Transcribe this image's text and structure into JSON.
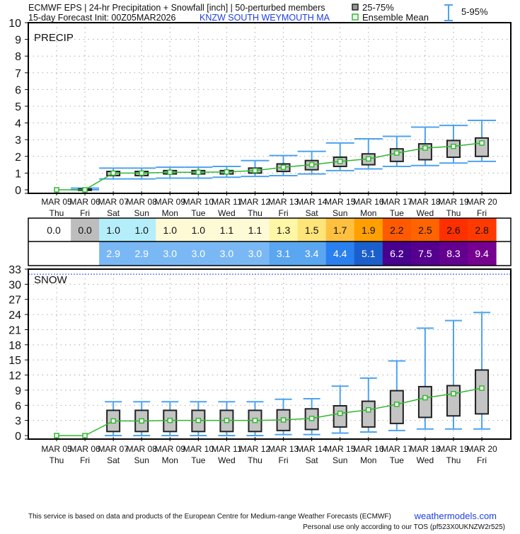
{
  "header": {
    "line1": "ECMWF EPS | 24-hr Precipitation + Snowfall [inch] | 50-perturbed members",
    "line2": "15-day Forecast Init: 00Z05MAR2026",
    "station": "KNZW  SOUTH WEYMOUTH  MA"
  },
  "legend": {
    "box": "25-75%",
    "mean": "Ensemble Mean",
    "whisker": "5-95%"
  },
  "footer": {
    "credit": "This service is based on data and products of the European Centre for Medium-range Weather Forecasts (ECMWF)",
    "site": "weathermodels.com",
    "tos": "Personal use only according to our TOS (pf523X0UKNZW2r525)"
  },
  "colors": {
    "box_fill": "#c4c4c4",
    "whisker": "#4da3f0",
    "mean": "#2eb82e",
    "snow_marker_line": "#2040ff"
  },
  "chart_data": [
    {
      "type": "box",
      "title": "PRECIP",
      "categories": [
        "MAR 05",
        "MAR 06",
        "MAR 07",
        "MAR 08",
        "MAR 09",
        "MAR 10",
        "MAR 11",
        "MAR 12",
        "MAR 13",
        "MAR 14",
        "MAR 15",
        "MAR 16",
        "MAR 17",
        "MAR 18",
        "MAR 19",
        "MAR 20"
      ],
      "days": [
        "Thu",
        "Fri",
        "Sat",
        "Sun",
        "Mon",
        "Tue",
        "Wed",
        "Thu",
        "Fri",
        "Sat",
        "Sun",
        "Mon",
        "Tue",
        "Wed",
        "Thu",
        "Fri"
      ],
      "ylim": [
        0,
        10
      ],
      "yticks": [
        0,
        1,
        2,
        3,
        4,
        5,
        6,
        7,
        8,
        9,
        10
      ],
      "grid": true,
      "mean": [
        0.0,
        0.0,
        1.0,
        1.0,
        1.05,
        1.05,
        1.07,
        1.15,
        1.35,
        1.5,
        1.7,
        1.85,
        2.2,
        2.5,
        2.6,
        2.8
      ],
      "p25": [
        0,
        0,
        0.85,
        0.85,
        0.95,
        0.95,
        0.95,
        1.0,
        1.1,
        1.2,
        1.4,
        1.5,
        1.7,
        1.8,
        1.95,
        2.0
      ],
      "p75": [
        0,
        0.05,
        1.1,
        1.1,
        1.15,
        1.15,
        1.15,
        1.3,
        1.55,
        1.75,
        1.95,
        2.15,
        2.45,
        2.75,
        2.95,
        3.1
      ],
      "p5": [
        0,
        0,
        0.65,
        0.65,
        0.7,
        0.7,
        0.75,
        0.8,
        0.85,
        0.95,
        1.15,
        1.25,
        1.4,
        1.45,
        1.6,
        1.7
      ],
      "p95": [
        0,
        0.1,
        1.3,
        1.3,
        1.35,
        1.35,
        1.4,
        1.75,
        2.05,
        2.3,
        2.8,
        3.05,
        3.2,
        3.75,
        3.85,
        4.15
      ],
      "accum_table": {
        "values": [
          "0.0",
          "0.0",
          "1.0",
          "1.0",
          "1.0",
          "1.0",
          "1.1",
          "1.1",
          "1.3",
          "1.5",
          "1.7",
          "1.9",
          "2.2",
          "2.5",
          "2.6",
          "2.8"
        ],
        "colors": [
          "#ffffff",
          "#bdbdbd",
          "#b4eefa",
          "#b4eefa",
          "#fffad6",
          "#fffad6",
          "#fffad6",
          "#fffad6",
          "#fff6a6",
          "#ffe47a",
          "#ffc040",
          "#ffa000",
          "#ff5a00",
          "#ff6400",
          "#ff3000",
          "#ff3a00"
        ]
      }
    },
    {
      "type": "box",
      "title": "SNOW",
      "categories": [
        "MAR 05",
        "MAR 06",
        "MAR 07",
        "MAR 08",
        "MAR 09",
        "MAR 10",
        "MAR 11",
        "MAR 12",
        "MAR 13",
        "MAR 14",
        "MAR 15",
        "MAR 16",
        "MAR 17",
        "MAR 18",
        "MAR 19",
        "MAR 20"
      ],
      "days": [
        "Thu",
        "Fri",
        "Sat",
        "Sun",
        "Mon",
        "Tue",
        "Wed",
        "Thu",
        "Fri",
        "Sat",
        "Sun",
        "Mon",
        "Tue",
        "Wed",
        "Thu",
        "Fri"
      ],
      "ylim": [
        0,
        33
      ],
      "yticks": [
        0,
        3,
        6,
        9,
        12,
        15,
        18,
        21,
        24,
        27,
        30,
        33
      ],
      "grid": true,
      "reference_line": 32,
      "mean": [
        0,
        0,
        2.9,
        2.9,
        3.0,
        3.0,
        3.0,
        3.0,
        3.1,
        3.4,
        4.4,
        5.1,
        6.2,
        7.5,
        8.3,
        9.4
      ],
      "p25": [
        0,
        0,
        0.8,
        0.8,
        0.8,
        0.8,
        0.8,
        0.8,
        1.0,
        1.2,
        1.7,
        1.7,
        2.4,
        3.6,
        3.9,
        4.3
      ],
      "p75": [
        0,
        0,
        5.0,
        5.0,
        5.0,
        5.0,
        5.0,
        5.0,
        5.1,
        5.3,
        5.9,
        6.8,
        8.9,
        9.7,
        9.9,
        13.0
      ],
      "p5": [
        0,
        0,
        0,
        0,
        0,
        0,
        0,
        0,
        0.2,
        0.2,
        0.5,
        0.7,
        1.0,
        1.3,
        1.3,
        1.3
      ],
      "p95": [
        0,
        0,
        6.7,
        6.7,
        6.7,
        6.7,
        6.7,
        6.7,
        7.2,
        7.3,
        9.8,
        11.4,
        14.8,
        21.3,
        22.8,
        24.4
      ],
      "accum_table": {
        "values": [
          "",
          "",
          "2.9",
          "2.9",
          "3.0",
          "3.0",
          "3.0",
          "3.0",
          "3.1",
          "3.4",
          "4.4",
          "5.1",
          "6.2",
          "7.5",
          "8.3",
          "9.4"
        ],
        "colors": [
          "#ffffff",
          "#ffffff",
          "#7ab8f5",
          "#7ab8f5",
          "#7ab8f5",
          "#7ab8f5",
          "#7ab8f5",
          "#7ab8f5",
          "#5aa6f0",
          "#5aa6f0",
          "#2a80ee",
          "#1a5fcc",
          "#48008f",
          "#560090",
          "#640090",
          "#760090"
        ]
      }
    }
  ]
}
